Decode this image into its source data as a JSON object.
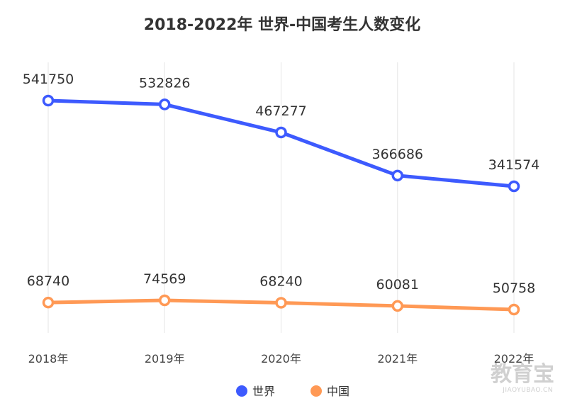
{
  "chart_data": {
    "type": "line",
    "title": "2018-2022年 世界-中国考生人数变化",
    "categories": [
      "2018年",
      "2019年",
      "2020年",
      "2021年",
      "2022年"
    ],
    "series": [
      {
        "name": "世界",
        "color": "#3d5afe",
        "values": [
          541750,
          532826,
          467277,
          366686,
          341574
        ]
      },
      {
        "name": "中国",
        "color": "#ff9955",
        "values": [
          68740,
          74569,
          68240,
          60081,
          50758
        ]
      }
    ],
    "xlabel": "",
    "ylabel": "",
    "y_axis_visible": false,
    "grid": "vertical",
    "legend": "bottom-center",
    "data_labels": true
  },
  "watermark": {
    "text": "教育宝",
    "sub": "JIAOYUBAO.CN"
  }
}
